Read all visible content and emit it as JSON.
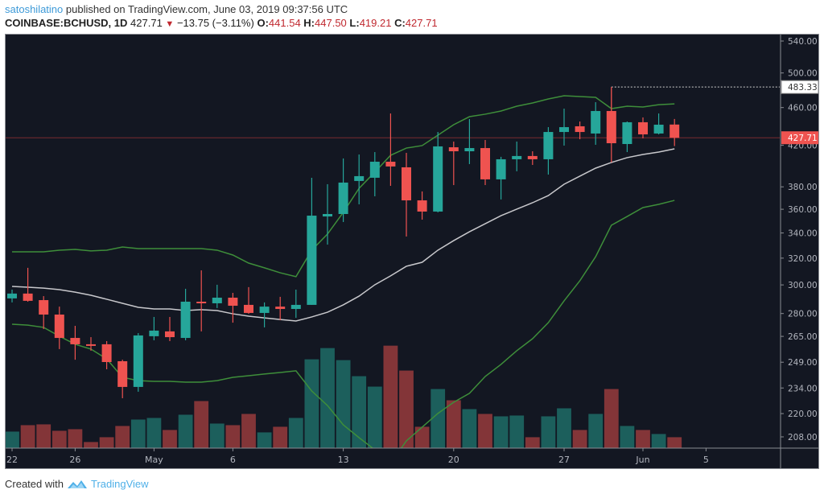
{
  "header": {
    "author": "satoshilatino",
    "published_text": "published on TradingView.com, June 03, 2019 09:37:56 UTC",
    "symbol": "COINBASE:BCHUSD, 1D",
    "last_price": "427.71",
    "change_direction_icon": "triangle-down",
    "change": "−13.75 (−3.11%)",
    "o_label": "O:",
    "o_value": "441.54",
    "h_label": "H:",
    "h_value": "447.50",
    "l_label": "L:",
    "l_value": "419.21",
    "c_label": "C:",
    "c_value": "427.71"
  },
  "footer": {
    "created_with": "Created with",
    "brand": "TradingView"
  },
  "colors": {
    "up": "#26a69a",
    "down": "#ef5350",
    "up_volume": "#1c5f5c",
    "down_volume": "#833538",
    "background": "#131722",
    "bb_outer": "#3e8e3a",
    "bb_basis": "#c8c8cc"
  },
  "chart_data": {
    "type": "candlestick",
    "scale": "log",
    "ylim": [
      200,
      560
    ],
    "y_ticks": [
      "540.00",
      "500.00",
      "460.00",
      "420.00",
      "380.00",
      "360.00",
      "340.00",
      "320.00",
      "300.00",
      "280.00",
      "265.00",
      "249.00",
      "234.00",
      "220.00",
      "208.00"
    ],
    "x_ticks": [
      {
        "label": "22",
        "index": 0
      },
      {
        "label": "26",
        "index": 4
      },
      {
        "label": "May",
        "index": 9
      },
      {
        "label": "6",
        "index": 14
      },
      {
        "label": "13",
        "index": 21
      },
      {
        "label": "20",
        "index": 28
      },
      {
        "label": "27",
        "index": 35
      },
      {
        "label": "Jun",
        "index": 40
      },
      {
        "label": "5",
        "index": 44
      }
    ],
    "price_tags": [
      {
        "label": "483.33",
        "value": 483.33,
        "style": "high-marker"
      },
      {
        "label": "427.71",
        "value": 427.71,
        "style": "last-price"
      }
    ],
    "ohlc": [
      [
        290.4,
        296.6,
        287.6,
        293.8
      ],
      [
        293.8,
        312.6,
        288.1,
        288.7
      ],
      [
        289.2,
        292.0,
        269.7,
        279.3
      ],
      [
        279.3,
        284.7,
        257.0,
        264.0
      ],
      [
        264.0,
        271.8,
        250.5,
        260.0
      ],
      [
        260.0,
        264.5,
        256.0,
        259.5
      ],
      [
        260.0,
        262.0,
        244.8,
        249.1
      ],
      [
        249.6,
        250.5,
        228.3,
        234.6
      ],
      [
        234.6,
        267.1,
        231.9,
        265.6
      ],
      [
        265.1,
        277.7,
        262.5,
        268.7
      ],
      [
        268.2,
        277.7,
        262.0,
        264.5
      ],
      [
        264.0,
        297.2,
        262.5,
        288.1
      ],
      [
        288.1,
        310.7,
        268.2,
        287.0
      ],
      [
        287.0,
        300.1,
        283.7,
        290.9
      ],
      [
        290.9,
        294.3,
        273.9,
        285.3
      ],
      [
        285.9,
        298.4,
        279.8,
        280.4
      ],
      [
        280.4,
        287.6,
        270.8,
        284.7
      ],
      [
        284.7,
        291.5,
        275.5,
        283.1
      ],
      [
        283.1,
        296.6,
        277.1,
        285.9
      ],
      [
        285.9,
        388.4,
        285.9,
        354.5
      ],
      [
        353.8,
        382.4,
        330.6,
        355.9
      ],
      [
        355.9,
        406.9,
        349.1,
        383.9
      ],
      [
        385.4,
        410.8,
        364.3,
        389.9
      ],
      [
        388.4,
        413.2,
        371.4,
        403.7
      ],
      [
        403.7,
        453.5,
        380.9,
        399.1
      ],
      [
        398.3,
        412.4,
        337.1,
        367.8
      ],
      [
        367.8,
        375.8,
        351.1,
        358.0
      ],
      [
        358.0,
        433.7,
        357.3,
        418.9
      ],
      [
        418.0,
        423.8,
        381.6,
        414.0
      ],
      [
        414.0,
        447.4,
        401.4,
        417.2
      ],
      [
        417.2,
        425.4,
        381.6,
        386.9
      ],
      [
        386.9,
        408.5,
        368.6,
        406.1
      ],
      [
        406.1,
        423.8,
        394.5,
        409.3
      ],
      [
        409.3,
        414.0,
        400.6,
        406.1
      ],
      [
        406.1,
        438.8,
        391.4,
        433.7
      ],
      [
        433.7,
        458.8,
        419.7,
        438.8
      ],
      [
        439.7,
        444.8,
        426.2,
        433.7
      ],
      [
        432.1,
        466.0,
        420.5,
        456.2
      ],
      [
        456.2,
        483.33,
        403.0,
        422.1
      ],
      [
        421.3,
        444.8,
        413.2,
        444.0
      ],
      [
        444.0,
        449.2,
        427.1,
        431.2
      ],
      [
        432.1,
        453.5,
        431.2,
        441.4
      ],
      [
        441.54,
        447.5,
        419.21,
        427.71
      ]
    ],
    "volume_relative": [
      21,
      29,
      30,
      22,
      24,
      8,
      14,
      28,
      36,
      38,
      23,
      42,
      59,
      31,
      29,
      43,
      20,
      27,
      38,
      111,
      125,
      110,
      90,
      77,
      128,
      97,
      27,
      74,
      60,
      49,
      43,
      40,
      41,
      14,
      40,
      50,
      23,
      43,
      74,
      28,
      23,
      18,
      14
    ],
    "bb_upper": [
      324.9,
      324.9,
      324.9,
      326.2,
      326.8,
      325.6,
      326.2,
      328.7,
      327.4,
      327.4,
      327.4,
      327.4,
      327.4,
      326.2,
      322.4,
      316.2,
      312.6,
      308.9,
      306.0,
      326.2,
      339.1,
      357.3,
      378.6,
      393.7,
      410.0,
      417.2,
      419.7,
      430.4,
      441.4,
      450.0,
      452.7,
      456.2,
      461.5,
      465.1,
      469.6,
      473.3,
      472.4,
      471.5,
      458.8,
      461.5,
      460.6,
      463.2,
      464.1
    ],
    "bb_basis": [
      298.9,
      298.3,
      297.7,
      296.6,
      294.8,
      292.6,
      289.8,
      287.0,
      284.2,
      283.1,
      283.1,
      282.0,
      282.6,
      282.0,
      279.8,
      278.2,
      277.1,
      276.0,
      275.0,
      277.7,
      280.9,
      285.9,
      292.0,
      300.1,
      306.6,
      313.8,
      316.8,
      326.2,
      333.8,
      341.0,
      347.7,
      354.5,
      360.1,
      365.7,
      372.1,
      382.4,
      389.9,
      397.5,
      403.0,
      407.7,
      410.8,
      413.2,
      416.4
    ],
    "bb_lower": [
      272.9,
      272.3,
      270.8,
      265.1,
      260.0,
      257.0,
      251.0,
      240.1,
      238.2,
      237.8,
      237.8,
      237.3,
      237.3,
      238.2,
      240.1,
      241.0,
      242.0,
      242.9,
      243.9,
      232.3,
      224.3,
      214.1,
      207.6,
      201.6,
      195.1,
      206.0,
      212.9,
      220.1,
      226.1,
      231.0,
      240.6,
      247.7,
      256.0,
      263.5,
      273.9,
      288.7,
      303.0,
      321.1,
      346.4,
      353.8,
      361.5,
      364.3,
      367.8
    ]
  }
}
